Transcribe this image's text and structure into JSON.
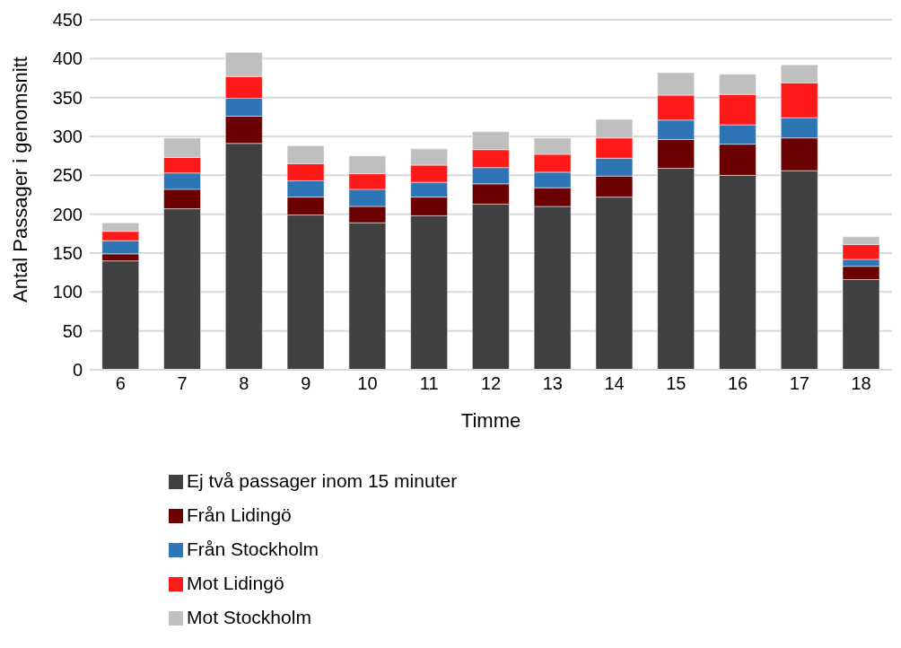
{
  "chart_data": {
    "type": "bar",
    "stacked": true,
    "xlabel": "Timme",
    "ylabel": "Antal Passager i genomsnitt",
    "categories": [
      "6",
      "7",
      "8",
      "9",
      "10",
      "11",
      "12",
      "13",
      "14",
      "15",
      "16",
      "17",
      "18"
    ],
    "series": [
      {
        "name": "Ej två passager inom 15 minuter",
        "color": "#404040",
        "values": [
          140,
          207,
          291,
          199,
          189,
          198,
          213,
          210,
          222,
          259,
          250,
          256,
          116
        ]
      },
      {
        "name": "Från Lidingö",
        "color": "#6b0000",
        "values": [
          9,
          25,
          35,
          23,
          21,
          24,
          26,
          24,
          27,
          37,
          40,
          42,
          17
        ]
      },
      {
        "name": "Från Stockholm",
        "color": "#2e75b6",
        "values": [
          17,
          21,
          23,
          21,
          22,
          19,
          21,
          20,
          23,
          25,
          25,
          26,
          9
        ]
      },
      {
        "name": "Mot Lidingö",
        "color": "#ff1a1a",
        "values": [
          12,
          20,
          28,
          22,
          20,
          22,
          23,
          23,
          26,
          32,
          39,
          45,
          19
        ]
      },
      {
        "name": "Mot Stockholm",
        "color": "#bfbfbf",
        "values": [
          11,
          25,
          31,
          23,
          23,
          21,
          23,
          21,
          24,
          29,
          26,
          23,
          10
        ]
      }
    ],
    "ylim": [
      0,
      450
    ],
    "yticks": [
      0,
      50,
      100,
      150,
      200,
      250,
      300,
      350,
      400,
      450
    ],
    "grid": "y",
    "legend": "bottom"
  }
}
